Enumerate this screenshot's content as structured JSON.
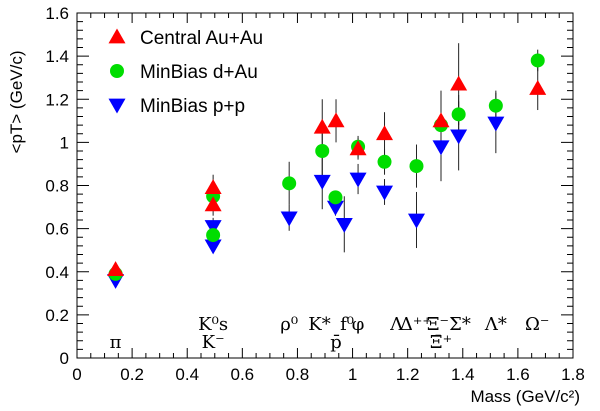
{
  "chart_data": {
    "type": "scatter",
    "xlabel": "Mass (GeV/c²)",
    "ylabel": "<pT> (GeV/c)",
    "xlim": [
      0,
      1.8
    ],
    "ylim": [
      0,
      1.6
    ],
    "x_ticks": [
      "0",
      "0.2",
      "0.4",
      "0.6",
      "0.8",
      "1",
      "1.2",
      "1.4",
      "1.6",
      "1.8"
    ],
    "y_ticks": [
      "0",
      "0.2",
      "0.4",
      "0.6",
      "0.8",
      "1",
      "1.2",
      "1.4",
      "1.6"
    ],
    "grid": false,
    "legend_position": "top-left",
    "series": [
      {
        "name": "Central Au+Au",
        "marker": "triangle-up",
        "color": "#ff0000",
        "points": [
          {
            "x": 0.14,
            "y": 0.41,
            "err": 0.0
          },
          {
            "x": 0.494,
            "y": 0.79,
            "err": 0.06
          },
          {
            "x": 0.494,
            "y": 0.71,
            "err": 0.05
          },
          {
            "x": 0.89,
            "y": 1.07,
            "err": 0.13
          },
          {
            "x": 0.94,
            "y": 1.1,
            "err": 0.1
          },
          {
            "x": 1.02,
            "y": 0.97,
            "err": 0.05
          },
          {
            "x": 1.116,
            "y": 1.04,
            "err": 0.1
          },
          {
            "x": 1.321,
            "y": 1.1,
            "err": 0.14
          },
          {
            "x": 1.385,
            "y": 1.27,
            "err": 0.19
          },
          {
            "x": 1.672,
            "y": 1.25,
            "err": 0.1
          }
        ]
      },
      {
        "name": "MinBias d+Au",
        "marker": "circle",
        "color": "#00dd00",
        "points": [
          {
            "x": 0.14,
            "y": 0.39,
            "err": 0.0
          },
          {
            "x": 0.494,
            "y": 0.75,
            "err": 0.05
          },
          {
            "x": 0.494,
            "y": 0.57,
            "err": 0.04
          },
          {
            "x": 0.77,
            "y": 0.81,
            "err": 0.1
          },
          {
            "x": 0.89,
            "y": 0.96,
            "err": 0.12
          },
          {
            "x": 0.938,
            "y": 0.745,
            "err": 0.03
          },
          {
            "x": 1.02,
            "y": 0.98,
            "err": 0.05
          },
          {
            "x": 1.116,
            "y": 0.91,
            "err": 0.06
          },
          {
            "x": 1.232,
            "y": 0.89,
            "err": 0.1
          },
          {
            "x": 1.321,
            "y": 1.08,
            "err": 0.11
          },
          {
            "x": 1.385,
            "y": 1.13,
            "err": 0.09
          },
          {
            "x": 1.52,
            "y": 1.17,
            "err": 0.07
          },
          {
            "x": 1.672,
            "y": 1.38,
            "err": 0.05
          }
        ]
      },
      {
        "name": "MinBias p+p",
        "marker": "triangle-down",
        "color": "#0000ff",
        "points": [
          {
            "x": 0.14,
            "y": 0.36,
            "err": 0.0
          },
          {
            "x": 0.494,
            "y": 0.61,
            "err": 0.04
          },
          {
            "x": 0.494,
            "y": 0.52,
            "err": 0.03
          },
          {
            "x": 0.77,
            "y": 0.65,
            "err": 0.06
          },
          {
            "x": 0.89,
            "y": 0.82,
            "err": 0.13
          },
          {
            "x": 0.938,
            "y": 0.7,
            "err": 0.04
          },
          {
            "x": 0.97,
            "y": 0.62,
            "err": 0.13
          },
          {
            "x": 1.02,
            "y": 0.83,
            "err": 0.07
          },
          {
            "x": 1.116,
            "y": 0.77,
            "err": 0.06
          },
          {
            "x": 1.232,
            "y": 0.64,
            "err": 0.13
          },
          {
            "x": 1.321,
            "y": 0.98,
            "err": 0.16
          },
          {
            "x": 1.385,
            "y": 1.03,
            "err": 0.16
          },
          {
            "x": 1.52,
            "y": 1.09,
            "err": 0.14
          }
        ]
      }
    ],
    "annotations": [
      {
        "text": "π",
        "x": 0.14,
        "row": "low"
      },
      {
        "text": "K⁰s",
        "x": 0.494,
        "row": "high"
      },
      {
        "text": "K⁻",
        "x": 0.494,
        "row": "low"
      },
      {
        "text": "ρ⁰",
        "x": 0.77,
        "row": "high"
      },
      {
        "text": "K*",
        "x": 0.88,
        "row": "high"
      },
      {
        "text": "p̄",
        "x": 0.94,
        "row": "low"
      },
      {
        "text": "f⁰",
        "x": 0.98,
        "row": "high"
      },
      {
        "text": "φ",
        "x": 1.02,
        "row": "high"
      },
      {
        "text": "Λ",
        "x": 1.16,
        "row": "high"
      },
      {
        "text": "Δ⁺⁺",
        "x": 1.23,
        "row": "high"
      },
      {
        "text": "Ξ⁻",
        "x": 1.31,
        "row": "high"
      },
      {
        "text": "Ξ̄⁺",
        "x": 1.321,
        "row": "low"
      },
      {
        "text": "Σ*",
        "x": 1.39,
        "row": "high"
      },
      {
        "text": "Λ*",
        "x": 1.52,
        "row": "high"
      },
      {
        "text": "Ω⁻",
        "x": 1.67,
        "row": "high"
      }
    ]
  }
}
